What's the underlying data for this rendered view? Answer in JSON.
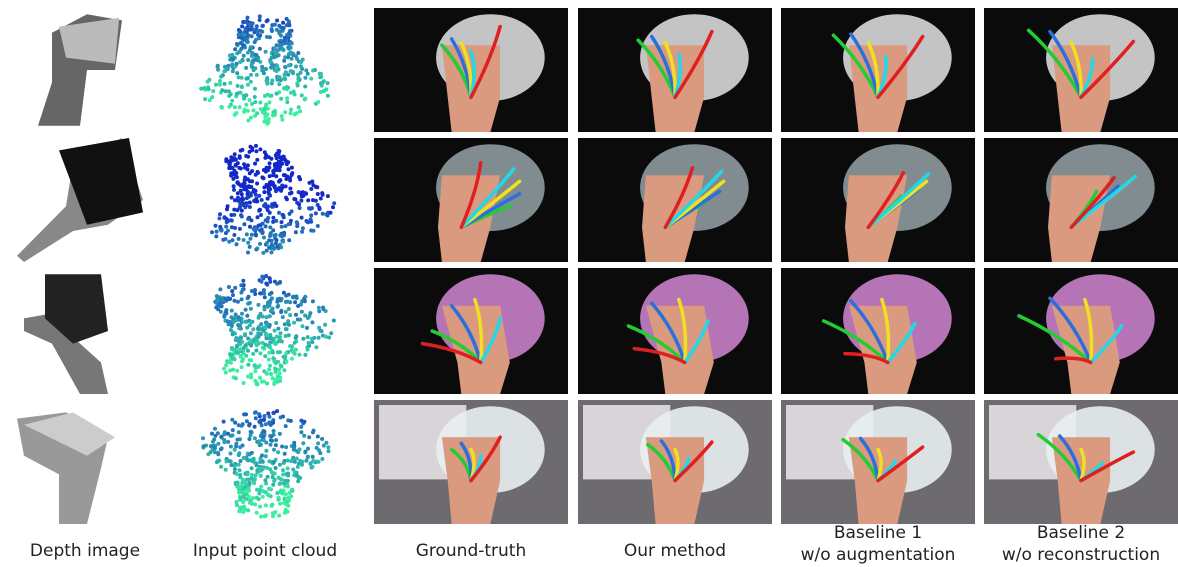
{
  "columns": [
    {
      "lines": [
        "Depth image"
      ]
    },
    {
      "lines": [
        "Input point cloud"
      ]
    },
    {
      "lines": [
        "Ground-truth"
      ]
    },
    {
      "lines": [
        "Our method"
      ]
    },
    {
      "lines": [
        "Baseline 1",
        "w/o augmentation"
      ]
    },
    {
      "lines": [
        "Baseline 2",
        "w/o reconstruction"
      ]
    }
  ]
}
